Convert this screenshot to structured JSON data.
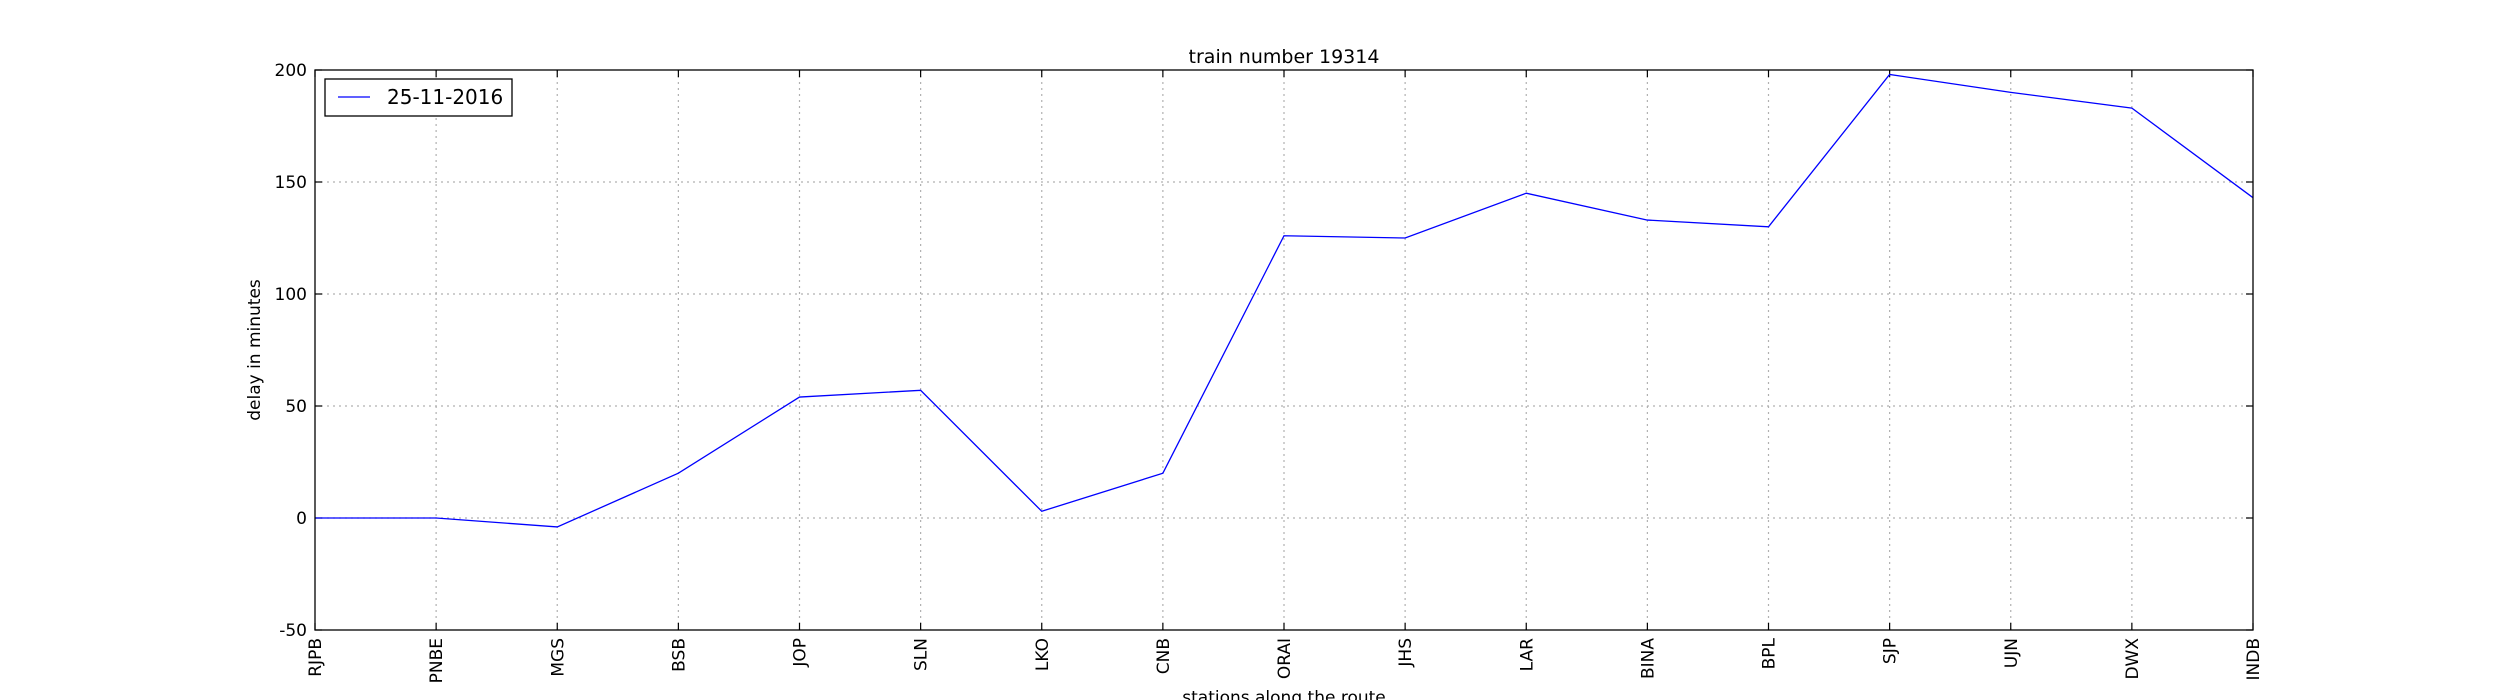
{
  "chart_data": {
    "type": "line",
    "title": "train number 19314",
    "xlabel": "stations along the route",
    "ylabel": "delay in minutes",
    "categories": [
      "RJPB",
      "PNBE",
      "MGS",
      "BSB",
      "JOP",
      "SLN",
      "LKO",
      "CNB",
      "ORAI",
      "JHS",
      "LAR",
      "BINA",
      "BPL",
      "SJP",
      "UJN",
      "DWX",
      "INDB"
    ],
    "series": [
      {
        "name": "25-11-2016",
        "values": [
          0,
          0,
          -4,
          20,
          54,
          57,
          3,
          20,
          126,
          125,
          145,
          133,
          130,
          198,
          190,
          183,
          143
        ],
        "color": "#0000ff"
      }
    ],
    "ylim": [
      -50,
      200
    ],
    "yticks": [
      -50,
      0,
      50,
      100,
      150,
      200
    ],
    "grid": true,
    "legend": "top-left"
  }
}
